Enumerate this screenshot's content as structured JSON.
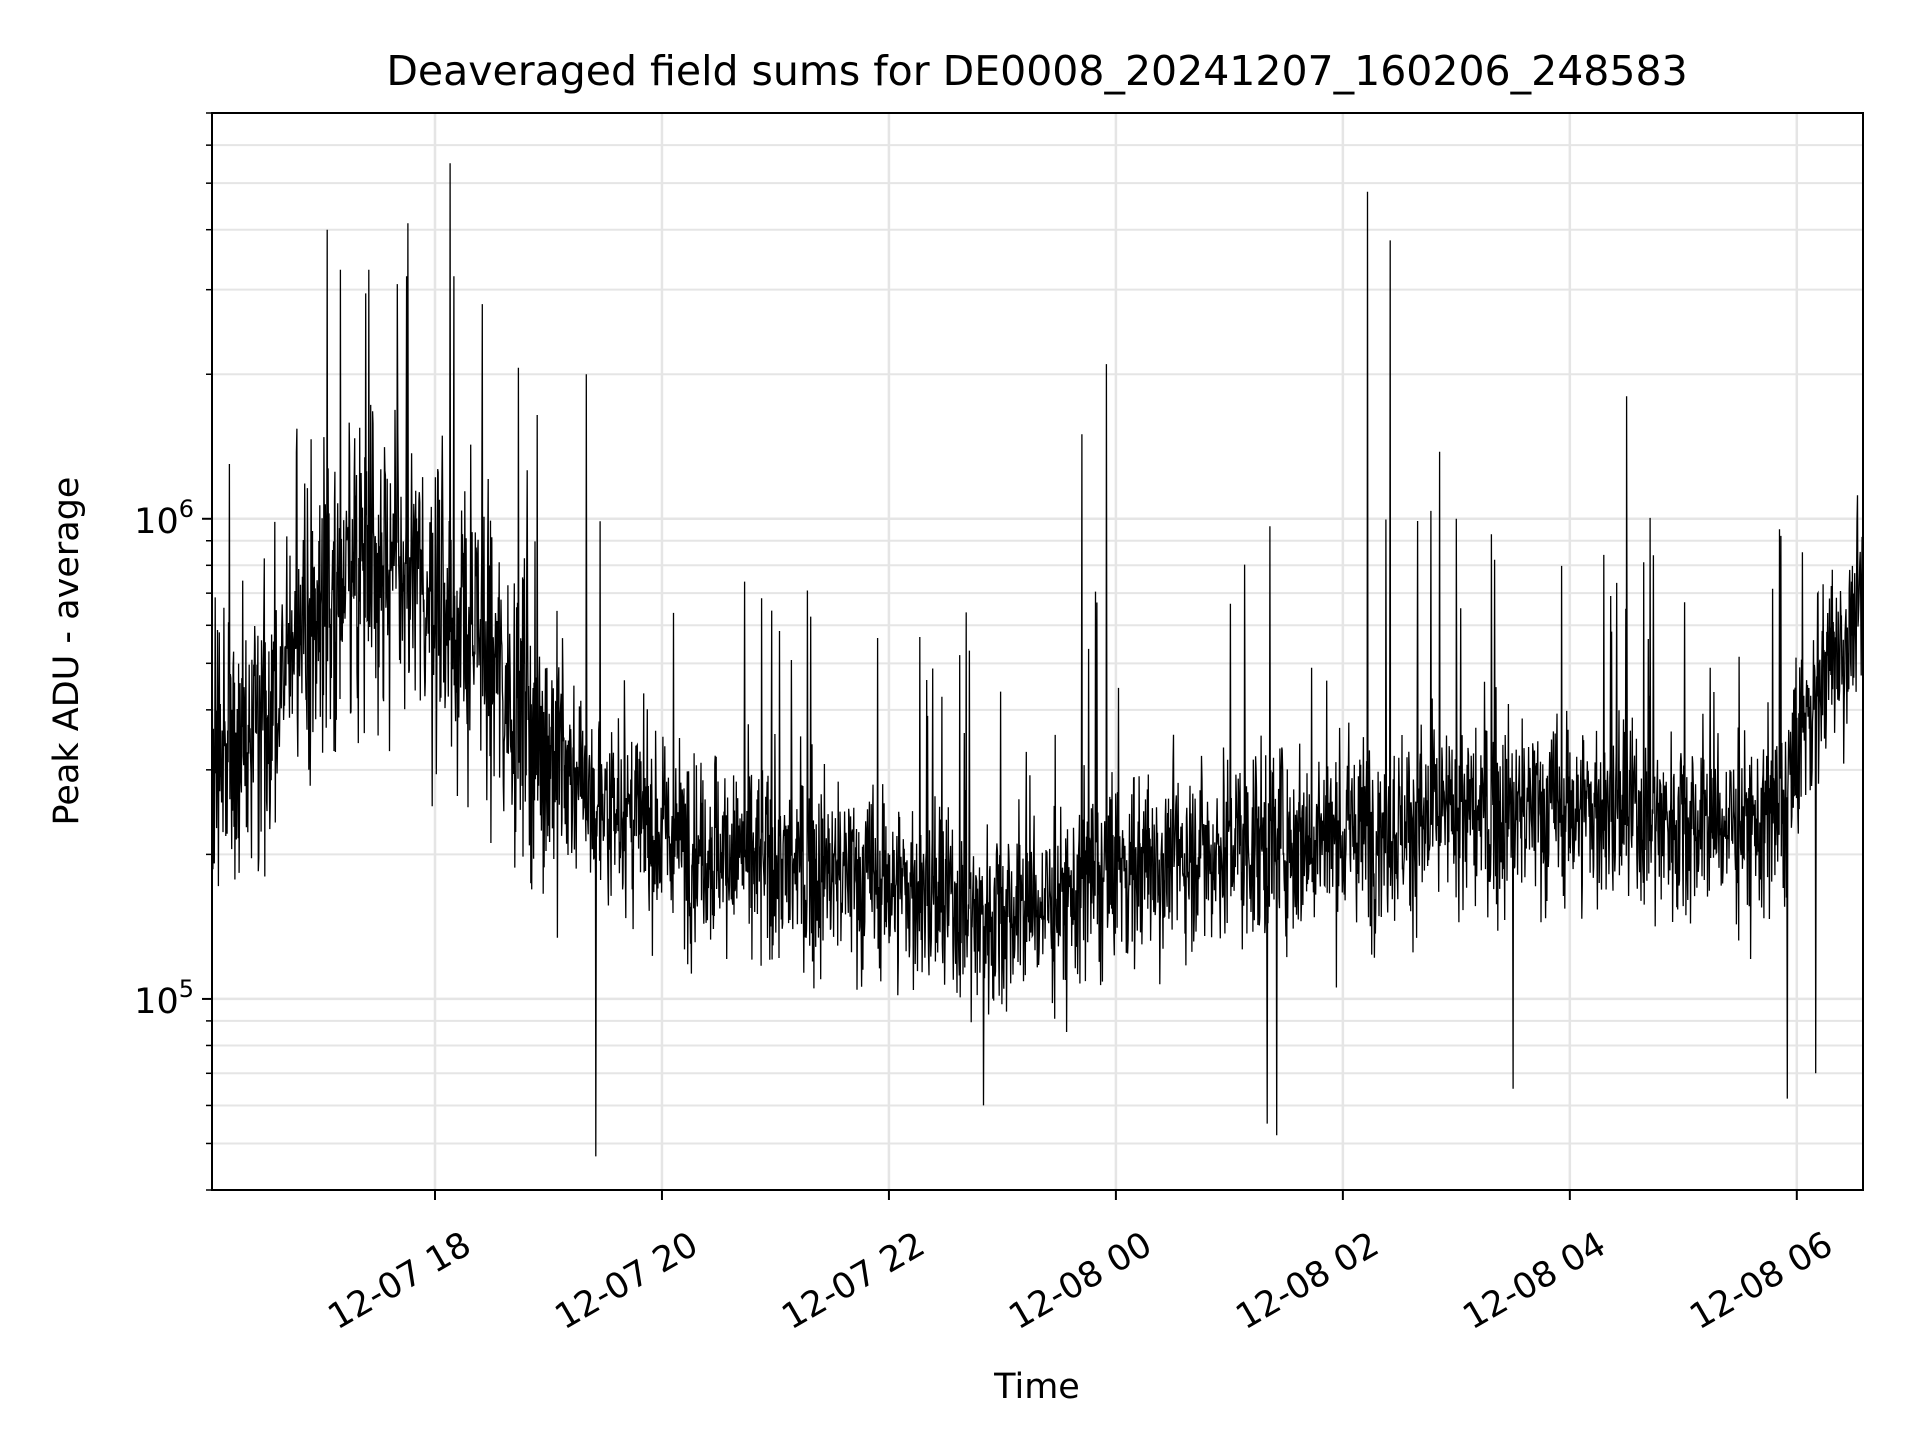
{
  "chart_data": {
    "type": "line",
    "title": "Deaveraged field sums for DE0008_20241207_160206_248583",
    "xlabel": "Time",
    "ylabel": "Peak ADU - average",
    "x_axis": {
      "kind": "datetime",
      "start": "2024-12-07T16:02:06",
      "end": "2024-12-08T06:35:00",
      "tick_labels": [
        "12-07 18",
        "12-07 20",
        "12-07 22",
        "12-08 00",
        "12-08 02",
        "12-08 04",
        "12-08 06"
      ],
      "tick_times": [
        "2024-12-07T18:00",
        "2024-12-07T20:00",
        "2024-12-07T22:00",
        "2024-12-08T00:00",
        "2024-12-08T02:00",
        "2024-12-08T04:00",
        "2024-12-08T06:00"
      ]
    },
    "y_axis": {
      "scale": "log",
      "ylim": [
        40000,
        7000000
      ],
      "tick_labels": [
        {
          "base": "10",
          "exp": "5",
          "value": 100000
        },
        {
          "base": "10",
          "exp": "6",
          "value": 1000000
        }
      ]
    },
    "grid": true,
    "line_color": "#000000",
    "baseline": [
      {
        "t": "2024-12-07T16:02",
        "v": 300000
      },
      {
        "t": "2024-12-07T16:30",
        "v": 340000
      },
      {
        "t": "2024-12-07T16:45",
        "v": 550000
      },
      {
        "t": "2024-12-07T17:00",
        "v": 700000
      },
      {
        "t": "2024-12-07T17:30",
        "v": 850000
      },
      {
        "t": "2024-12-07T18:00",
        "v": 650000
      },
      {
        "t": "2024-12-07T18:30",
        "v": 500000
      },
      {
        "t": "2024-12-07T19:00",
        "v": 330000
      },
      {
        "t": "2024-12-07T19:30",
        "v": 250000
      },
      {
        "t": "2024-12-07T20:00",
        "v": 220000
      },
      {
        "t": "2024-12-07T21:00",
        "v": 190000
      },
      {
        "t": "2024-12-07T22:00",
        "v": 175000
      },
      {
        "t": "2024-12-07T22:45",
        "v": 150000
      },
      {
        "t": "2024-12-07T23:30",
        "v": 160000
      },
      {
        "t": "2024-12-08T00:00",
        "v": 185000
      },
      {
        "t": "2024-12-08T01:00",
        "v": 210000
      },
      {
        "t": "2024-12-08T02:00",
        "v": 220000
      },
      {
        "t": "2024-12-08T03:00",
        "v": 240000
      },
      {
        "t": "2024-12-08T04:00",
        "v": 250000
      },
      {
        "t": "2024-12-08T05:00",
        "v": 235000
      },
      {
        "t": "2024-12-08T05:50",
        "v": 230000
      },
      {
        "t": "2024-12-08T06:10",
        "v": 450000
      },
      {
        "t": "2024-12-08T06:35",
        "v": 650000
      }
    ],
    "spikes": [
      {
        "t": "2024-12-07T17:03",
        "v": 4000000
      },
      {
        "t": "2024-12-07T17:10",
        "v": 3300000
      },
      {
        "t": "2024-12-07T17:25",
        "v": 3300000
      },
      {
        "t": "2024-12-07T17:45",
        "v": 3200000
      },
      {
        "t": "2024-12-07T18:08",
        "v": 5500000
      },
      {
        "t": "2024-12-07T18:10",
        "v": 3200000
      },
      {
        "t": "2024-12-07T18:25",
        "v": 2800000
      },
      {
        "t": "2024-12-07T19:20",
        "v": 2000000
      },
      {
        "t": "2024-12-07T23:42",
        "v": 1500000
      },
      {
        "t": "2024-12-07T23:55",
        "v": 2100000
      },
      {
        "t": "2024-12-08T02:13",
        "v": 4800000
      },
      {
        "t": "2024-12-08T02:25",
        "v": 3800000
      },
      {
        "t": "2024-12-08T03:00",
        "v": 1000000
      },
      {
        "t": "2024-12-08T04:30",
        "v": 1800000
      },
      {
        "t": "2024-12-08T06:35",
        "v": 1450000
      }
    ],
    "dips": [
      {
        "t": "2024-12-07T19:25",
        "v": 47000
      },
      {
        "t": "2024-12-07T22:50",
        "v": 60000
      },
      {
        "t": "2024-12-08T01:20",
        "v": 55000
      },
      {
        "t": "2024-12-08T01:25",
        "v": 52000
      },
      {
        "t": "2024-12-08T03:30",
        "v": 65000
      },
      {
        "t": "2024-12-08T05:55",
        "v": 62000
      },
      {
        "t": "2024-12-08T06:10",
        "v": 70000
      }
    ]
  }
}
